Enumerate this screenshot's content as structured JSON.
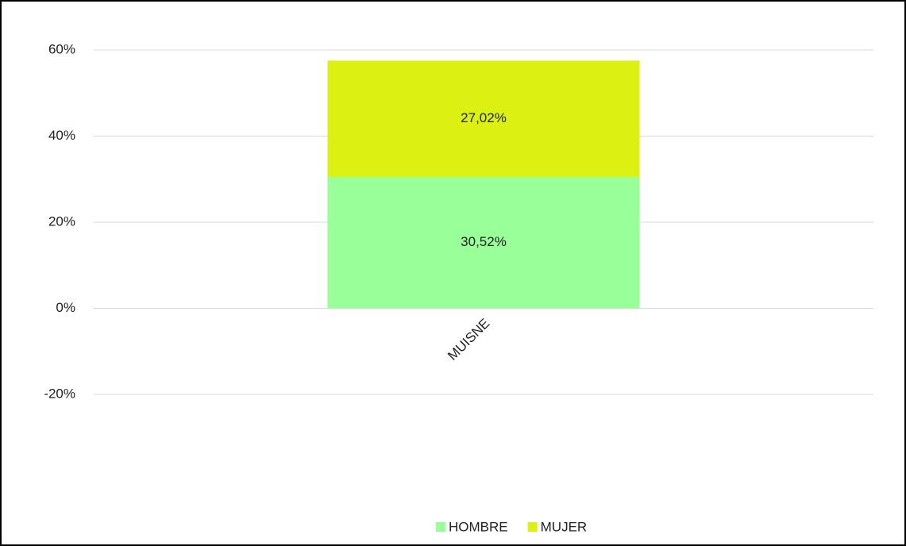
{
  "chart_data": {
    "type": "stacked_bar",
    "categories": [
      "MUISNE"
    ],
    "series": [
      {
        "name": "HOMBRE",
        "color": "#99ff99",
        "values": [
          30.52
        ],
        "value_labels": [
          "30,52%"
        ]
      },
      {
        "name": "MUJER",
        "color": "#dcf012",
        "values": [
          27.02
        ],
        "value_labels": [
          "27,02%"
        ]
      }
    ],
    "ylim": [
      -20,
      60
    ],
    "yticks": [
      {
        "value": -20,
        "label": "-20%"
      },
      {
        "value": 0,
        "label": "0%"
      },
      {
        "value": 20,
        "label": "20%"
      },
      {
        "value": 40,
        "label": "40%"
      },
      {
        "value": 60,
        "label": "60%"
      }
    ],
    "grid": true,
    "legend": "bottom"
  }
}
